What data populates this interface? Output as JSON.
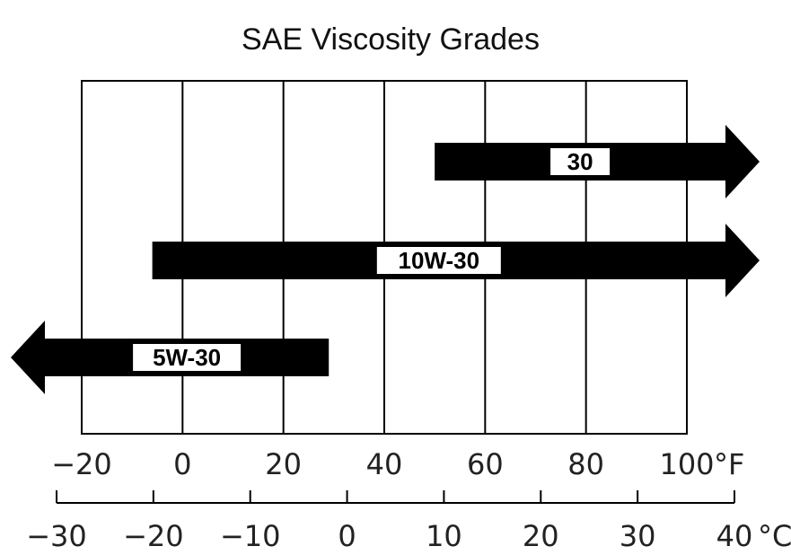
{
  "chart_data": {
    "type": "range-bar",
    "title": "SAE Viscosity Grades",
    "x_axis_f": {
      "ticks": [
        -20,
        0,
        20,
        40,
        60,
        80,
        100
      ],
      "tick_labels": [
        "−20",
        "0",
        "20",
        "40",
        "60",
        "80",
        "100"
      ],
      "unit": "°F",
      "range": [
        -20,
        100
      ]
    },
    "x_axis_c": {
      "ticks": [
        -30,
        -20,
        -10,
        0,
        10,
        20,
        30,
        40
      ],
      "tick_labels": [
        "−30",
        "−20",
        "−10",
        "0",
        "10",
        "20",
        "30",
        "40"
      ],
      "unit": "°C",
      "range": [
        -30,
        40
      ]
    },
    "grid": true,
    "series": [
      {
        "label": "30",
        "min_f": 50,
        "max_f": null,
        "extends": "right",
        "color": "#000000"
      },
      {
        "label": "10W-30",
        "min_f": -6,
        "max_f": null,
        "extends": "right",
        "color": "#000000"
      },
      {
        "label": "5W-30",
        "min_f": null,
        "max_f": 29,
        "extends": "left",
        "color": "#000000"
      }
    ]
  }
}
